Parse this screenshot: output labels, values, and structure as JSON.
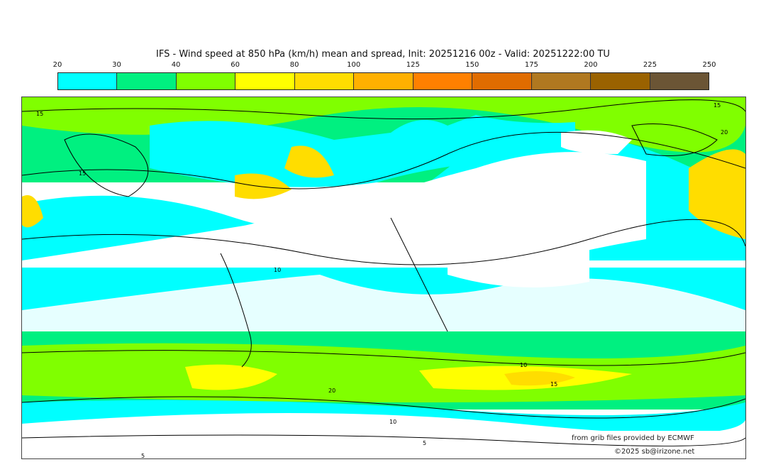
{
  "title": "IFS - Wind speed at 850 hPa (km/h) mean and spread, Init: 20251216 00z - Valid: 20251222:00 TU",
  "colorbar": {
    "ticks": [
      "20",
      "30",
      "40",
      "60",
      "80",
      "100",
      "125",
      "150",
      "175",
      "200",
      "225",
      "250"
    ],
    "colors": [
      "#00ffff",
      "#00f080",
      "#80ff00",
      "#ffff00",
      "#ffdd00",
      "#ffb000",
      "#ff8000",
      "#e06c00",
      "#b07820",
      "#9a6200",
      "#6b5535"
    ]
  },
  "map": {
    "contour_labels": [
      "15",
      "15",
      "20",
      "15",
      "10",
      "20",
      "10",
      "15",
      "5",
      "10",
      "5"
    ]
  },
  "credits": {
    "source": "from grib files provided by ECMWF",
    "copyright": "©2025 sb@irizone.net"
  }
}
